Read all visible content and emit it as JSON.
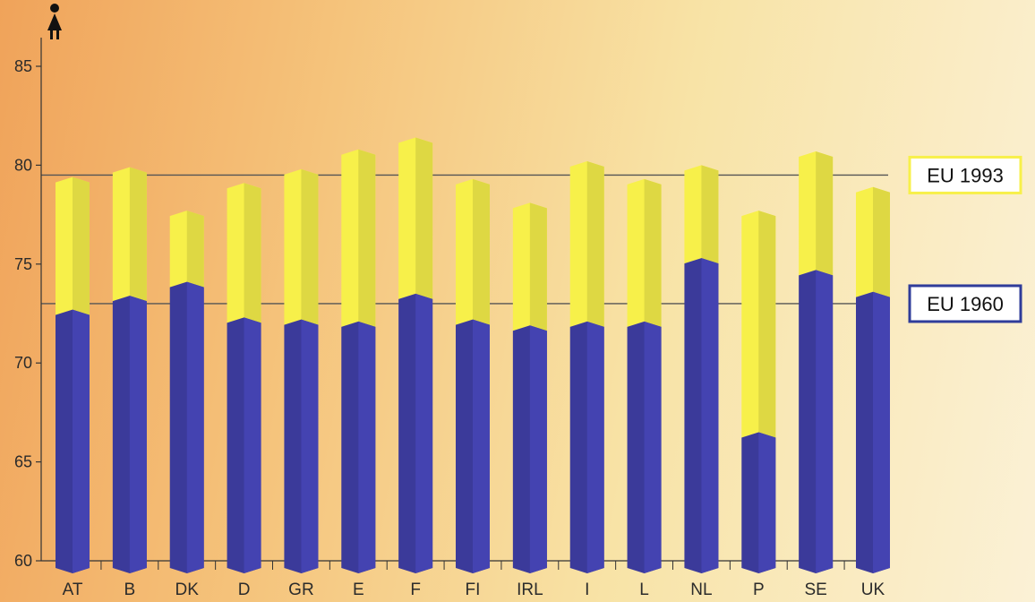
{
  "chart_data": {
    "type": "bar",
    "categories": [
      "AT",
      "B",
      "DK",
      "D",
      "GR",
      "E",
      "F",
      "FI",
      "IRL",
      "I",
      "L",
      "NL",
      "P",
      "SE",
      "UK"
    ],
    "series": [
      {
        "values": [
          72.7,
          73.4,
          74.1,
          72.3,
          72.2,
          72.1,
          73.5,
          72.2,
          71.9,
          72.1,
          72.1,
          75.3,
          66.5,
          74.7,
          73.6
        ],
        "color": "#3b3a9a"
      },
      {
        "values": [
          79.4,
          79.9,
          77.7,
          79.1,
          79.8,
          80.8,
          81.4,
          79.3,
          78.1,
          80.2,
          79.3,
          80.0,
          77.7,
          80.7,
          78.9
        ],
        "color": "#f7f04a"
      }
    ],
    "ylim": [
      60,
      85
    ],
    "yticks": [
      60,
      65,
      70,
      75,
      80,
      85
    ],
    "reference_lines": [
      {
        "label": "EU 1993",
        "value": 79.5,
        "box_color": "#f7f04a"
      },
      {
        "label": "EU 1960",
        "value": 73.0,
        "box_color": "#2f3c9a"
      }
    ],
    "icon": "female-person-icon"
  }
}
